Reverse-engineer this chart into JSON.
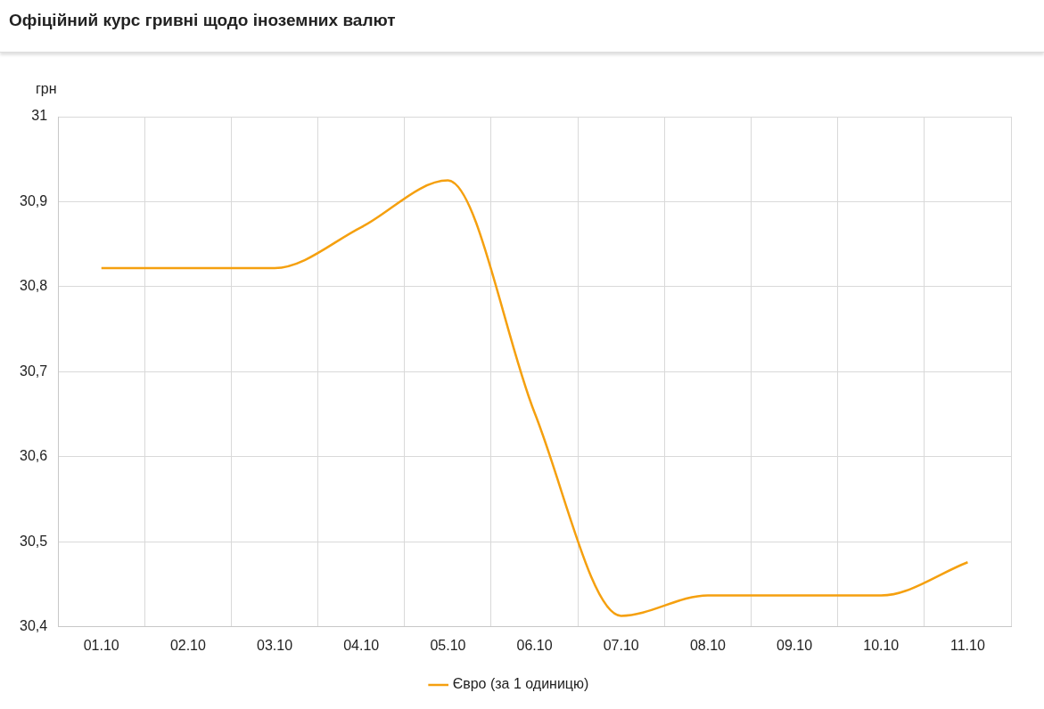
{
  "chart_data": {
    "type": "line",
    "title": "Офіційний курс гривні щодо іноземних валют",
    "ylabel": "грн",
    "categories": [
      "01.10",
      "02.10",
      "03.10",
      "04.10",
      "05.10",
      "06.10",
      "07.10",
      "08.10",
      "09.10",
      "10.10",
      "11.10"
    ],
    "series": [
      {
        "name": "Євро (за 1 одиницю)",
        "color": "#f5a00f",
        "values": [
          30.822,
          30.822,
          30.822,
          30.87,
          30.925,
          30.652,
          30.413,
          30.437,
          30.437,
          30.437,
          30.476
        ]
      }
    ],
    "ylim": [
      30.4,
      31
    ],
    "yticks": [
      {
        "value": 30.4,
        "label": "30,4"
      },
      {
        "value": 30.5,
        "label": "30,5"
      },
      {
        "value": 30.6,
        "label": "30,6"
      },
      {
        "value": 30.7,
        "label": "30,7"
      },
      {
        "value": 30.8,
        "label": "30,8"
      },
      {
        "value": 30.9,
        "label": "30,9"
      },
      31
    ],
    "grid": true,
    "legend": "bottom",
    "marker": "none",
    "line_style": "solid"
  }
}
